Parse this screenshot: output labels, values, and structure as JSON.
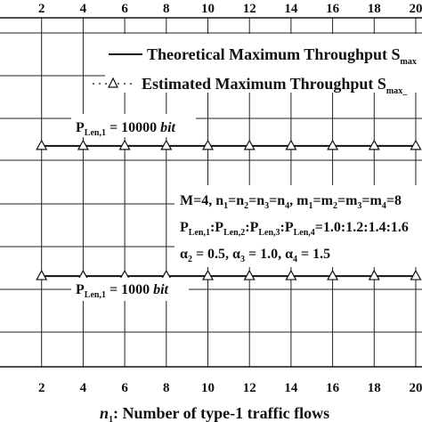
{
  "chart_data": {
    "type": "line",
    "xlabel_var": "n",
    "xlabel_sub": "1",
    "xlabel_rest": ": Number of type-1 traffic flows",
    "x_ticks": [
      "2",
      "4",
      "6",
      "8",
      "10",
      "12",
      "14",
      "16",
      "18",
      "20"
    ],
    "xlim": [
      0,
      20.3
    ],
    "y_visible_range": [
      0,
      1
    ],
    "grid": true,
    "legend_placement": "top-right",
    "legend": [
      {
        "key": "theoretical",
        "marker": "line",
        "text": "Theoretical Maximum Throughput S",
        "sub": "max"
      },
      {
        "key": "estimated",
        "marker": "triangle-dotted",
        "text": "Estimated Maximum Throughput S",
        "sub": "max_"
      }
    ],
    "series": [
      {
        "group": "P_Len,1 = 10000 bit",
        "x": [
          2,
          4,
          6,
          8,
          10,
          12,
          14,
          16,
          18,
          20
        ],
        "y_norm": [
          0.633,
          0.633,
          0.633,
          0.633,
          0.633,
          0.633,
          0.633,
          0.633,
          0.633,
          0.633
        ]
      },
      {
        "group": "P_Len,1 = 1000 bit",
        "x": [
          2,
          4,
          6,
          8,
          10,
          12,
          14,
          16,
          18,
          20
        ],
        "y_norm": [
          0.26,
          0.26,
          0.26,
          0.26,
          0.26,
          0.26,
          0.26,
          0.26,
          0.26,
          0.26
        ]
      }
    ],
    "annotations": {
      "p10000": {
        "p": "P",
        "sub": "Len,1",
        "eq": " = 10000 ",
        "unit": "bit"
      },
      "p1000": {
        "p": "P",
        "sub": "Len,1",
        "eq": " = 1000 ",
        "unit": "bit"
      },
      "params_line1": {
        "parts": [
          "M=4, n",
          "1",
          "=n",
          "2",
          "=n",
          "3",
          "=n",
          "4",
          ", m",
          "1",
          "=m",
          "2",
          "=m",
          "3",
          "=m",
          "4",
          "=8"
        ]
      },
      "params_line2": {
        "parts": [
          "P",
          "Len,1",
          ":P",
          "Len,2",
          ":P",
          "Len,3",
          ":P",
          "Len,4",
          "=1.0:1.2:1.4:1.6"
        ]
      },
      "params_line3": {
        "parts": [
          "α",
          "2",
          " = 0.5, α",
          "3",
          " = 1.0, α",
          "4",
          " = 1.5"
        ]
      }
    }
  }
}
